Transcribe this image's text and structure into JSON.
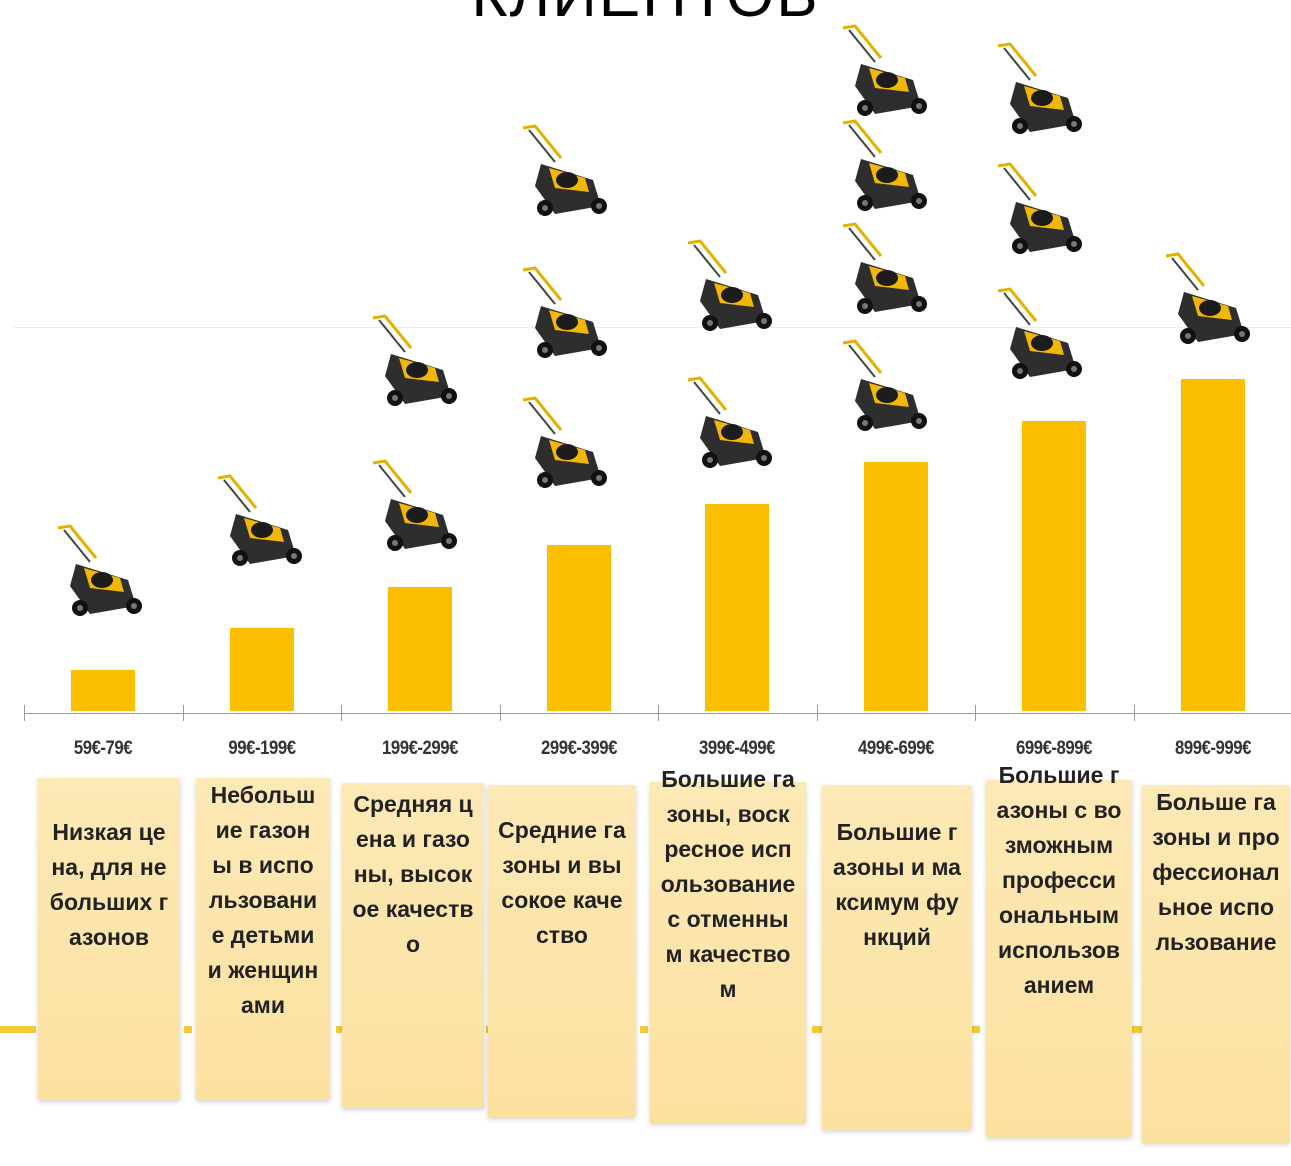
{
  "title": "КЛИЕНТОВ",
  "chart_data": {
    "type": "bar",
    "categories": [
      "59€-79€",
      "99€-199€",
      "199€-299€",
      "299€-399€",
      "399€-499€",
      "499€-699€",
      "699€-899€",
      "899€-999€"
    ],
    "values": [
      1,
      2,
      3,
      4,
      5,
      6,
      7,
      8
    ],
    "ylim": [
      0,
      8
    ],
    "grid": false,
    "legend": "none",
    "bar_color": "#fbbf00",
    "products_per_category": [
      1,
      1,
      2,
      3,
      2,
      4,
      3,
      1
    ],
    "descriptions": [
      "Низкая цена, для небольших газонов",
      "Небольшие газоны в использование детьми и женщинами",
      "Средняя цена и газоны, высокое качество",
      "Средние газоны и высокое качество",
      "Большие газоны, воскресное использование с отменным качеством",
      "Большие газоны и максимум функций",
      "Большие газоны с возможным профессиональным использованием",
      "Больше газоны и профессиональное использование"
    ]
  },
  "colors": {
    "accent": "#fbbf00",
    "card": "#fde9b6",
    "axis": "#9a9a9a"
  },
  "icon": "lawn-mower-icon"
}
